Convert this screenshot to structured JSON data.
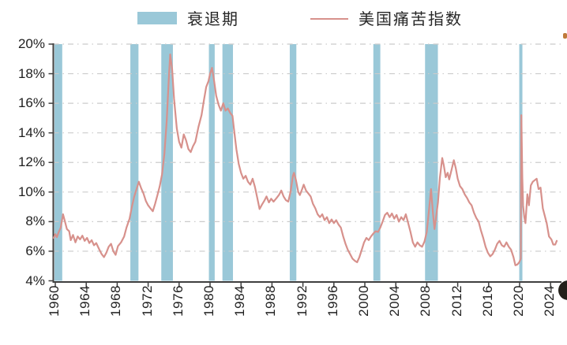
{
  "colors": {
    "background": "#ffffff",
    "recession_band": "#9ac8d8",
    "misery_line": "#d7918c",
    "grid": "#cbcbcb",
    "axis": "#3f3f3f",
    "tick_text": "#1f1f1f",
    "legend_text": "#262626"
  },
  "chart_data": {
    "type": "line",
    "title": "",
    "legend_position": "top",
    "grid": {
      "visible": true,
      "style": "dash-dot"
    },
    "legend": [
      {
        "label": "衰退期",
        "kind": "band",
        "color": "#9ac8d8"
      },
      {
        "label": "美国痛苦指数",
        "kind": "line",
        "color": "#d7918c"
      }
    ],
    "y_axis": {
      "min": 4,
      "max": 20,
      "step": 2,
      "format": "percent",
      "tick_labels": [
        "20%",
        "18%",
        "16%",
        "14%",
        "12%",
        "10%",
        "8%",
        "6%",
        "4%"
      ]
    },
    "x_axis": {
      "label_rotation": -90,
      "tick_years": [
        1960,
        1964,
        1968,
        1972,
        1976,
        1980,
        1984,
        1988,
        1992,
        1996,
        2000,
        2004,
        2008,
        2012,
        2016,
        2020,
        2024
      ]
    },
    "recession_bands_years": [
      [
        1959.9,
        1960.9
      ],
      [
        1969.7,
        1970.75
      ],
      [
        1973.7,
        1975.2
      ],
      [
        1979.85,
        1980.6
      ],
      [
        1981.6,
        1982.96
      ],
      [
        1990.3,
        1991.15
      ],
      [
        2001.1,
        2002.0
      ],
      [
        2007.78,
        2009.44
      ],
      [
        2019.95,
        2020.36
      ]
    ],
    "series": [
      {
        "name": "美国痛苦指数",
        "color": "#d7918c",
        "points": [
          [
            1959.8,
            6.9
          ],
          [
            1960.0,
            7.15
          ],
          [
            1960.2,
            6.95
          ],
          [
            1960.45,
            7.3
          ],
          [
            1960.7,
            7.6
          ],
          [
            1961.0,
            8.5
          ],
          [
            1961.2,
            8.1
          ],
          [
            1961.5,
            7.5
          ],
          [
            1961.8,
            7.35
          ],
          [
            1962.0,
            6.75
          ],
          [
            1962.3,
            7.1
          ],
          [
            1962.6,
            6.6
          ],
          [
            1962.9,
            7.0
          ],
          [
            1963.2,
            6.8
          ],
          [
            1963.5,
            7.05
          ],
          [
            1963.8,
            6.7
          ],
          [
            1964.1,
            6.9
          ],
          [
            1964.4,
            6.55
          ],
          [
            1964.7,
            6.75
          ],
          [
            1965.0,
            6.4
          ],
          [
            1965.3,
            6.55
          ],
          [
            1965.7,
            6.1
          ],
          [
            1966.0,
            5.8
          ],
          [
            1966.3,
            5.6
          ],
          [
            1966.6,
            5.9
          ],
          [
            1966.9,
            6.3
          ],
          [
            1967.2,
            6.5
          ],
          [
            1967.5,
            6.0
          ],
          [
            1967.8,
            5.75
          ],
          [
            1968.1,
            6.35
          ],
          [
            1968.5,
            6.6
          ],
          [
            1968.9,
            7.0
          ],
          [
            1969.2,
            7.6
          ],
          [
            1969.6,
            8.2
          ],
          [
            1969.9,
            9.0
          ],
          [
            1970.2,
            9.7
          ],
          [
            1970.5,
            10.2
          ],
          [
            1970.8,
            10.7
          ],
          [
            1971.1,
            10.25
          ],
          [
            1971.4,
            9.9
          ],
          [
            1971.7,
            9.4
          ],
          [
            1972.0,
            9.1
          ],
          [
            1972.3,
            8.9
          ],
          [
            1972.6,
            8.7
          ],
          [
            1972.9,
            9.2
          ],
          [
            1973.2,
            9.8
          ],
          [
            1973.5,
            10.4
          ],
          [
            1973.8,
            11.2
          ],
          [
            1974.1,
            12.6
          ],
          [
            1974.4,
            14.8
          ],
          [
            1974.65,
            17.5
          ],
          [
            1974.85,
            19.3
          ],
          [
            1975.1,
            18.3
          ],
          [
            1975.35,
            16.3
          ],
          [
            1975.7,
            14.3
          ],
          [
            1976.0,
            13.4
          ],
          [
            1976.3,
            13.0
          ],
          [
            1976.6,
            13.9
          ],
          [
            1976.9,
            13.5
          ],
          [
            1977.2,
            12.9
          ],
          [
            1977.5,
            12.7
          ],
          [
            1977.8,
            13.1
          ],
          [
            1978.1,
            13.4
          ],
          [
            1978.5,
            14.4
          ],
          [
            1978.9,
            15.2
          ],
          [
            1979.2,
            16.2
          ],
          [
            1979.5,
            17.1
          ],
          [
            1979.8,
            17.5
          ],
          [
            1980.0,
            18.0
          ],
          [
            1980.25,
            18.4
          ],
          [
            1980.5,
            17.6
          ],
          [
            1980.8,
            16.5
          ],
          [
            1981.1,
            15.9
          ],
          [
            1981.4,
            15.5
          ],
          [
            1981.7,
            16.0
          ],
          [
            1982.0,
            15.5
          ],
          [
            1982.3,
            15.65
          ],
          [
            1982.6,
            15.35
          ],
          [
            1982.9,
            15.15
          ],
          [
            1983.1,
            14.2
          ],
          [
            1983.4,
            12.9
          ],
          [
            1983.7,
            11.9
          ],
          [
            1984.0,
            11.3
          ],
          [
            1984.3,
            10.9
          ],
          [
            1984.6,
            11.1
          ],
          [
            1984.9,
            10.7
          ],
          [
            1985.2,
            10.5
          ],
          [
            1985.5,
            10.9
          ],
          [
            1985.8,
            10.35
          ],
          [
            1986.1,
            9.6
          ],
          [
            1986.4,
            8.85
          ],
          [
            1986.7,
            9.15
          ],
          [
            1987.0,
            9.4
          ],
          [
            1987.3,
            9.7
          ],
          [
            1987.6,
            9.3
          ],
          [
            1987.9,
            9.55
          ],
          [
            1988.2,
            9.35
          ],
          [
            1988.6,
            9.6
          ],
          [
            1988.9,
            9.8
          ],
          [
            1989.2,
            10.1
          ],
          [
            1989.5,
            9.7
          ],
          [
            1989.8,
            9.45
          ],
          [
            1990.1,
            9.35
          ],
          [
            1990.4,
            10.0
          ],
          [
            1990.7,
            11.1
          ],
          [
            1990.85,
            11.3
          ],
          [
            1991.1,
            10.8
          ],
          [
            1991.4,
            10.0
          ],
          [
            1991.6,
            9.8
          ],
          [
            1991.9,
            10.2
          ],
          [
            1992.1,
            10.5
          ],
          [
            1992.4,
            10.1
          ],
          [
            1992.7,
            9.9
          ],
          [
            1993.0,
            9.7
          ],
          [
            1993.3,
            9.2
          ],
          [
            1993.6,
            8.9
          ],
          [
            1993.9,
            8.5
          ],
          [
            1994.2,
            8.3
          ],
          [
            1994.5,
            8.5
          ],
          [
            1994.8,
            8.1
          ],
          [
            1995.1,
            8.3
          ],
          [
            1995.4,
            7.9
          ],
          [
            1995.7,
            8.15
          ],
          [
            1996.0,
            7.9
          ],
          [
            1996.3,
            8.1
          ],
          [
            1996.6,
            7.8
          ],
          [
            1996.9,
            7.6
          ],
          [
            1997.2,
            7.0
          ],
          [
            1997.5,
            6.5
          ],
          [
            1997.8,
            6.1
          ],
          [
            1998.1,
            5.8
          ],
          [
            1998.4,
            5.5
          ],
          [
            1998.7,
            5.35
          ],
          [
            1999.0,
            5.25
          ],
          [
            1999.3,
            5.6
          ],
          [
            1999.6,
            6.1
          ],
          [
            1999.9,
            6.6
          ],
          [
            2000.2,
            6.9
          ],
          [
            2000.5,
            6.75
          ],
          [
            2000.8,
            7.0
          ],
          [
            2001.1,
            7.2
          ],
          [
            2001.4,
            7.35
          ],
          [
            2001.7,
            7.3
          ],
          [
            2002.0,
            7.6
          ],
          [
            2002.3,
            8.0
          ],
          [
            2002.6,
            8.45
          ],
          [
            2002.9,
            8.6
          ],
          [
            2003.2,
            8.3
          ],
          [
            2003.5,
            8.55
          ],
          [
            2003.8,
            8.2
          ],
          [
            2004.1,
            8.45
          ],
          [
            2004.4,
            8.0
          ],
          [
            2004.7,
            8.3
          ],
          [
            2005.0,
            8.1
          ],
          [
            2005.3,
            8.5
          ],
          [
            2005.6,
            7.9
          ],
          [
            2005.9,
            7.3
          ],
          [
            2006.2,
            6.6
          ],
          [
            2006.5,
            6.3
          ],
          [
            2006.8,
            6.6
          ],
          [
            2007.1,
            6.4
          ],
          [
            2007.4,
            6.3
          ],
          [
            2007.7,
            6.65
          ],
          [
            2008.0,
            7.3
          ],
          [
            2008.3,
            8.8
          ],
          [
            2008.55,
            10.2
          ],
          [
            2008.8,
            8.6
          ],
          [
            2009.0,
            7.5
          ],
          [
            2009.2,
            8.3
          ],
          [
            2009.45,
            9.3
          ],
          [
            2009.7,
            11.0
          ],
          [
            2010.0,
            12.3
          ],
          [
            2010.2,
            11.8
          ],
          [
            2010.45,
            11.0
          ],
          [
            2010.7,
            11.3
          ],
          [
            2010.9,
            10.85
          ],
          [
            2011.2,
            11.5
          ],
          [
            2011.5,
            12.15
          ],
          [
            2011.75,
            11.6
          ],
          [
            2012.0,
            10.9
          ],
          [
            2012.3,
            10.4
          ],
          [
            2012.6,
            10.2
          ],
          [
            2012.9,
            9.85
          ],
          [
            2013.2,
            9.6
          ],
          [
            2013.5,
            9.3
          ],
          [
            2013.8,
            9.1
          ],
          [
            2014.1,
            8.6
          ],
          [
            2014.4,
            8.25
          ],
          [
            2014.7,
            8.0
          ],
          [
            2015.0,
            7.4
          ],
          [
            2015.3,
            6.9
          ],
          [
            2015.6,
            6.3
          ],
          [
            2015.9,
            5.9
          ],
          [
            2016.2,
            5.65
          ],
          [
            2016.5,
            5.8
          ],
          [
            2016.8,
            6.1
          ],
          [
            2017.1,
            6.5
          ],
          [
            2017.4,
            6.7
          ],
          [
            2017.7,
            6.4
          ],
          [
            2018.0,
            6.3
          ],
          [
            2018.3,
            6.6
          ],
          [
            2018.6,
            6.3
          ],
          [
            2018.9,
            6.1
          ],
          [
            2019.2,
            5.6
          ],
          [
            2019.45,
            5.05
          ],
          [
            2019.7,
            5.1
          ],
          [
            2019.95,
            5.25
          ],
          [
            2020.15,
            5.5
          ],
          [
            2020.22,
            15.2
          ],
          [
            2020.35,
            11.0
          ],
          [
            2020.45,
            9.1
          ],
          [
            2020.6,
            8.3
          ],
          [
            2020.75,
            7.9
          ],
          [
            2021.0,
            9.85
          ],
          [
            2021.2,
            9.1
          ],
          [
            2021.45,
            10.45
          ],
          [
            2021.7,
            10.7
          ],
          [
            2021.95,
            10.8
          ],
          [
            2022.2,
            10.9
          ],
          [
            2022.45,
            10.2
          ],
          [
            2022.7,
            10.3
          ],
          [
            2023.0,
            8.9
          ],
          [
            2023.3,
            8.3
          ],
          [
            2023.5,
            7.9
          ],
          [
            2023.8,
            7.0
          ],
          [
            2024.1,
            6.8
          ],
          [
            2024.35,
            6.45
          ],
          [
            2024.6,
            6.45
          ],
          [
            2024.8,
            6.7
          ]
        ]
      }
    ]
  }
}
